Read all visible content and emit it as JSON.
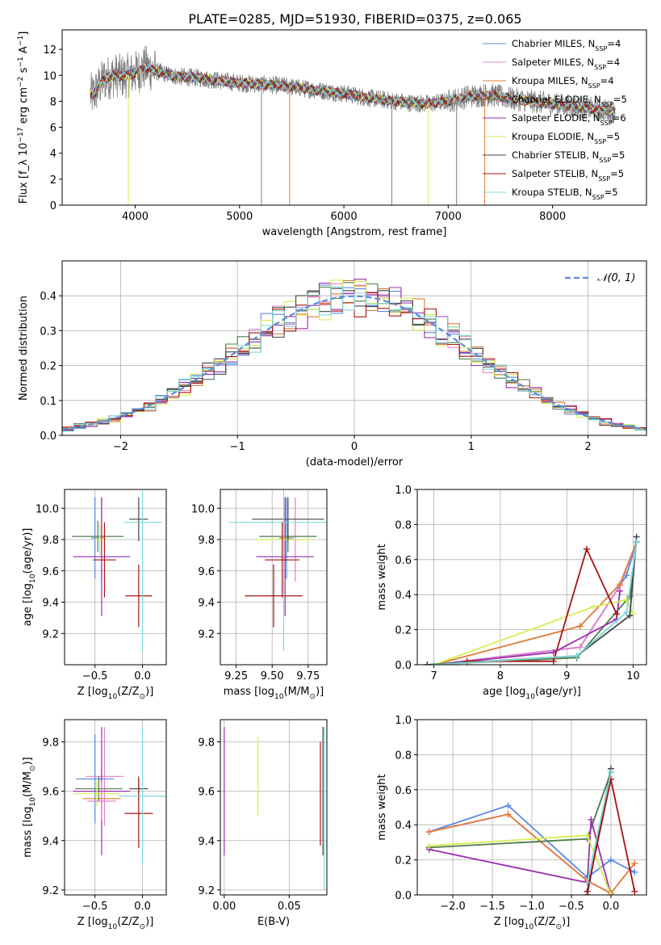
{
  "figure_title": "PLATE=0285, MJD=51930, FIBERID=0375, z=0.065",
  "colors": {
    "chabrier_miles": "#5b8ae0",
    "salpeter_miles": "#e47fc8",
    "kroupa_miles": "#e07b3a",
    "chabrier_elodie": "#4f7a4a",
    "salpeter_elodie": "#9a2fb0",
    "kroupa_elodie": "#d5ee50",
    "chabrier_stelib": "#444444",
    "salpeter_stelib": "#a81212",
    "kroupa_stelib": "#7cd8d8",
    "data": "#7f7f7f",
    "gaussian": "#5b8ae0"
  },
  "chart_data": [
    {
      "id": "spectrum",
      "type": "line",
      "title": "PLATE=0285, MJD=51930, FIBERID=0375, z=0.065",
      "xlabel": "wavelength [Angstrom, rest frame]",
      "ylabel": "Flux [f_λ 10^-17 erg cm^-2 s^-1 A^-1]",
      "xlim": [
        3300,
        8900
      ],
      "ylim": [
        0,
        13.5
      ],
      "xticks": [
        4000,
        5000,
        6000,
        7000,
        8000
      ],
      "yticks": [
        0,
        2,
        4,
        6,
        8,
        10,
        12
      ],
      "legend_position": "right",
      "legend": [
        "Chabrier MILES, N_SSP=4",
        "Salpeter MILES, N_SSP=4",
        "Kroupa MILES, N_SSP=4",
        "Chabrier ELODIE, N_SSP=5",
        "Salpeter ELODIE, N_SSP=6",
        "Kroupa ELODIE, N_SSP=5",
        "Chabrier STELIB, N_SSP=5",
        "Salpeter STELIB, N_SSP=5",
        "Kroupa STELIB, N_SSP=5"
      ],
      "continuum": [
        [
          3600,
          8.5
        ],
        [
          3700,
          9.7
        ],
        [
          3800,
          10.0
        ],
        [
          3900,
          9.9
        ],
        [
          4000,
          10.2
        ],
        [
          4100,
          10.6
        ],
        [
          4200,
          10.3
        ],
        [
          4400,
          9.9
        ],
        [
          4600,
          9.8
        ],
        [
          4800,
          9.6
        ],
        [
          5000,
          9.4
        ],
        [
          5200,
          9.3
        ],
        [
          5400,
          9.2
        ],
        [
          5600,
          9.0
        ],
        [
          5800,
          8.8
        ],
        [
          6000,
          8.6
        ],
        [
          6200,
          8.3
        ],
        [
          6400,
          8.1
        ],
        [
          6600,
          7.9
        ],
        [
          6800,
          7.8
        ],
        [
          7000,
          8.0
        ],
        [
          7200,
          8.4
        ],
        [
          7400,
          8.5
        ],
        [
          7600,
          8.2
        ],
        [
          7800,
          8.0
        ],
        [
          8000,
          7.8
        ],
        [
          8200,
          7.6
        ],
        [
          8400,
          7.4
        ],
        [
          8600,
          7.2
        ]
      ],
      "dips": [
        [
          3934,
          0
        ],
        [
          5210,
          0
        ],
        [
          5480,
          0
        ],
        [
          6460,
          0
        ],
        [
          6810,
          0
        ],
        [
          7080,
          0
        ],
        [
          7350,
          0
        ]
      ]
    },
    {
      "id": "residuals",
      "type": "line",
      "xlabel": "(data-model)/error",
      "ylabel": "Normed distribution",
      "xlim": [
        -2.5,
        2.5
      ],
      "ylim": [
        0,
        0.5
      ],
      "xticks": [
        -2,
        -1,
        0,
        1,
        2
      ],
      "yticks": [
        0.0,
        0.1,
        0.2,
        0.3,
        0.4
      ],
      "legend": [
        "𝒩(0, 1)"
      ],
      "legend_position": "upper right",
      "gaussian_mean": 0,
      "gaussian_sigma": 1
    },
    {
      "id": "age_vs_Z",
      "type": "scatter",
      "xlabel": "Z [log10(Z/Z☉)]",
      "ylabel": "age [log10(age/yr)]",
      "xlim": [
        -0.82,
        0.25
      ],
      "ylim": [
        9.0,
        10.12
      ],
      "xticks": [
        -0.5,
        0.0
      ],
      "yticks": [
        9.2,
        9.4,
        9.6,
        9.8,
        10.0
      ],
      "points": [
        {
          "series": "Chabrier MILES",
          "x": -0.5,
          "xerr": 0.04,
          "y": 9.81,
          "yerr": 0.26
        },
        {
          "series": "Salpeter MILES",
          "x": -0.43,
          "xerr": 0.02,
          "y": 9.8,
          "yerr": 0.27
        },
        {
          "series": "Kroupa MILES",
          "x": -0.43,
          "xerr": 0.02,
          "y": 9.81,
          "yerr": 0.26
        },
        {
          "series": "Chabrier ELODIE",
          "x": -0.47,
          "xerr": 0.27,
          "y": 9.82,
          "yerr": 0.1
        },
        {
          "series": "Salpeter ELODIE",
          "x": -0.43,
          "xerr": 0.3,
          "y": 9.69,
          "yerr": 0.38
        },
        {
          "series": "Kroupa ELODIE",
          "x": -0.45,
          "xerr": 0.05,
          "y": 9.8,
          "yerr": 0.1
        },
        {
          "series": "Chabrier STELIB",
          "x": -0.04,
          "xerr": 0.1,
          "y": 9.93,
          "yerr": 0.14
        },
        {
          "series": "Salpeter STELIB",
          "x": -0.04,
          "xerr": 0.14,
          "y": 9.44,
          "yerr": 0.2
        },
        {
          "series": "Kroupa STELIB",
          "x": 0.0,
          "xerr": 0.2,
          "y": 9.91,
          "yerr": 0.82
        },
        {
          "series": "Salpeter STELIB",
          "x": -0.4,
          "xerr": 0.12,
          "y": 9.67,
          "yerr": 0.24
        }
      ]
    },
    {
      "id": "age_vs_mass",
      "type": "scatter",
      "xlabel": "mass [log10(M/M☉)]",
      "ylabel": "",
      "xlim": [
        9.14,
        9.88
      ],
      "ylim": [
        9.0,
        10.12
      ],
      "xticks": [
        9.25,
        9.5,
        9.75
      ],
      "yticks": [
        9.2,
        9.4,
        9.6,
        9.8,
        10.0
      ],
      "points": [
        {
          "series": "Chabrier MILES",
          "x": 9.6,
          "xerr": 0.05,
          "y": 9.81,
          "yerr": 0.26
        },
        {
          "series": "Salpeter MILES",
          "x": 9.66,
          "xerr": 0.04,
          "y": 9.8,
          "yerr": 0.27
        },
        {
          "series": "Kroupa MILES",
          "x": 9.59,
          "xerr": 0.04,
          "y": 9.81,
          "yerr": 0.26
        },
        {
          "series": "Chabrier ELODIE",
          "x": 9.61,
          "xerr": 0.2,
          "y": 9.82,
          "yerr": 0.1
        },
        {
          "series": "Salpeter ELODIE",
          "x": 9.59,
          "xerr": 0.2,
          "y": 9.69,
          "yerr": 0.38
        },
        {
          "series": "Kroupa ELODIE",
          "x": 9.58,
          "xerr": 0.2,
          "y": 9.8,
          "yerr": 0.1
        },
        {
          "series": "Chabrier STELIB",
          "x": 9.61,
          "xerr": 0.25,
          "y": 9.93,
          "yerr": 0.14
        },
        {
          "series": "Salpeter STELIB",
          "x": 9.51,
          "xerr": 0.2,
          "y": 9.44,
          "yerr": 0.2
        },
        {
          "series": "Kroupa STELIB",
          "x": 9.58,
          "xerr": 0.38,
          "y": 9.91,
          "yerr": 0.82
        },
        {
          "series": "Salpeter STELIB",
          "x": 9.57,
          "xerr": 0.12,
          "y": 9.67,
          "yerr": 0.24
        }
      ]
    },
    {
      "id": "mass_weight_vs_age",
      "type": "line",
      "xlabel": "age [log10(age/yr)]",
      "ylabel": "mass weight",
      "xlim": [
        6.75,
        10.2
      ],
      "ylim": [
        0.0,
        1.0
      ],
      "xticks": [
        7,
        8,
        9,
        10
      ],
      "yticks": [
        0.0,
        0.2,
        0.4,
        0.6,
        0.8,
        1.0
      ],
      "series": [
        {
          "name": "Chabrier MILES",
          "x": [
            7.0,
            9.2,
            9.9,
            10.05
          ],
          "y": [
            0.0,
            0.1,
            0.51,
            0.7
          ]
        },
        {
          "name": "Salpeter MILES",
          "x": [
            7.0,
            9.2,
            9.8,
            10.05
          ],
          "y": [
            0.0,
            0.1,
            0.45,
            0.7
          ]
        },
        {
          "name": "Kroupa MILES",
          "x": [
            7.0,
            9.2,
            9.8,
            10.05
          ],
          "y": [
            0.0,
            0.22,
            0.46,
            0.7
          ]
        },
        {
          "name": "Chabrier ELODIE",
          "x": [
            6.9,
            9.15,
            9.95,
            10.05
          ],
          "y": [
            0.0,
            0.04,
            0.39,
            0.7
          ]
        },
        {
          "name": "Salpeter ELODIE",
          "x": [
            7.0,
            8.8,
            9.75,
            9.8
          ],
          "y": [
            0.0,
            0.07,
            0.26,
            0.42
          ]
        },
        {
          "name": "Kroupa ELODIE",
          "x": [
            7.0,
            9.4,
            9.9,
            10.0
          ],
          "y": [
            0.0,
            0.33,
            0.37,
            0.29
          ]
        },
        {
          "name": "Chabrier STELIB",
          "x": [
            6.9,
            9.15,
            9.95,
            10.05
          ],
          "y": [
            0.0,
            0.05,
            0.28,
            0.73
          ]
        },
        {
          "name": "Salpeter STELIB",
          "x": [
            7.5,
            8.8,
            9.3,
            9.75
          ],
          "y": [
            0.02,
            0.02,
            0.66,
            0.29
          ]
        },
        {
          "name": "Kroupa STELIB",
          "x": [
            7.0,
            9.15,
            9.9,
            10.05
          ],
          "y": [
            0.0,
            0.05,
            0.3,
            0.7
          ]
        }
      ]
    },
    {
      "id": "mass_vs_Z",
      "type": "scatter",
      "xlabel": "Z [log10(Z/Z☉)]",
      "ylabel": "mass [log10(M/M☉)]",
      "xlim": [
        -0.82,
        0.25
      ],
      "ylim": [
        9.18,
        9.89
      ],
      "xticks": [
        -0.5,
        0.0
      ],
      "yticks": [
        9.2,
        9.4,
        9.6,
        9.8
      ],
      "points": [
        {
          "series": "Chabrier MILES",
          "x": -0.5,
          "xerr": 0.2,
          "y": 9.65,
          "yerr": 0.18
        },
        {
          "series": "Salpeter MILES",
          "x": -0.4,
          "xerr": 0.2,
          "y": 9.66,
          "yerr": 0.2
        },
        {
          "series": "Kroupa MILES",
          "x": -0.43,
          "xerr": 0.2,
          "y": 9.57,
          "yerr": 0.12
        },
        {
          "series": "Chabrier ELODIE",
          "x": -0.46,
          "xerr": 0.25,
          "y": 9.61,
          "yerr": 0.05
        },
        {
          "series": "Salpeter ELODIE",
          "x": -0.43,
          "xerr": 0.3,
          "y": 9.6,
          "yerr": 0.26
        },
        {
          "series": "Kroupa ELODIE",
          "x": -0.48,
          "xerr": 0.25,
          "y": 9.59,
          "yerr": 0.05
        },
        {
          "series": "Chabrier STELIB",
          "x": -0.04,
          "xerr": 0.1,
          "y": 9.61,
          "yerr": 0.05
        },
        {
          "series": "Salpeter STELIB",
          "x": -0.04,
          "xerr": 0.15,
          "y": 9.51,
          "yerr": 0.14
        },
        {
          "series": "Kroupa STELIB",
          "x": 0.0,
          "xerr": 0.25,
          "y": 9.58,
          "yerr": 0.28
        },
        {
          "series": "Salpeter MILES",
          "x": -0.43,
          "xerr": 0.15,
          "y": 9.56,
          "yerr": 0.08
        }
      ]
    },
    {
      "id": "mass_vs_EBV",
      "type": "scatter",
      "xlabel": "E(B-V)",
      "ylabel": "",
      "xlim": [
        -0.003,
        0.079
      ],
      "ylim": [
        9.18,
        9.89
      ],
      "xticks": [
        0.0,
        0.05
      ],
      "yticks": [
        9.2,
        9.4,
        9.6,
        9.8
      ],
      "points": [
        {
          "series": "Salpeter ELODIE",
          "x": 0.0,
          "y": 9.6,
          "yerr": 0.26
        },
        {
          "series": "Kroupa ELODIE",
          "x": 0.026,
          "y": 9.66,
          "yerr": 0.16
        },
        {
          "series": "Salpeter STELIB",
          "x": 0.074,
          "y": 9.59,
          "yerr": 0.21
        },
        {
          "series": "Kroupa STELIB",
          "x": 0.077,
          "y": 9.53,
          "yerr": 0.33
        },
        {
          "series": "Chabrier STELIB",
          "x": 0.076,
          "y": 9.6,
          "yerr": 0.26
        }
      ]
    },
    {
      "id": "mass_weight_vs_Z",
      "type": "line",
      "xlabel": "Z [log10(Z/Z☉)]",
      "ylabel": "mass weight",
      "xlim": [
        -2.45,
        0.45
      ],
      "ylim": [
        0.0,
        1.0
      ],
      "xticks": [
        -2.0,
        -1.5,
        -1.0,
        -0.5,
        0.0
      ],
      "yticks": [
        0.0,
        0.2,
        0.4,
        0.6,
        0.8,
        1.0
      ],
      "series": [
        {
          "name": "Chabrier MILES",
          "x": [
            -2.3,
            -1.3,
            -0.3,
            0.0,
            0.3
          ],
          "y": [
            0.36,
            0.51,
            0.1,
            0.2,
            0.13
          ]
        },
        {
          "name": "Salpeter MILES",
          "x": [
            -2.3,
            -1.3,
            -0.3,
            0.0
          ],
          "y": [
            0.36,
            0.46,
            0.08,
            0.01
          ]
        },
        {
          "name": "Kroupa MILES",
          "x": [
            -2.3,
            -1.3,
            -0.3,
            0.0,
            0.3
          ],
          "y": [
            0.36,
            0.46,
            0.08,
            0.01,
            0.18
          ]
        },
        {
          "name": "Chabrier ELODIE",
          "x": [
            -2.3,
            -0.3,
            0.0
          ],
          "y": [
            0.27,
            0.32,
            0.7
          ]
        },
        {
          "name": "Salpeter ELODIE",
          "x": [
            -2.3,
            -0.3,
            -0.25,
            0.0
          ],
          "y": [
            0.26,
            0.07,
            0.43,
            0.0
          ]
        },
        {
          "name": "Kroupa ELODIE",
          "x": [
            -2.3,
            -0.3,
            0.0
          ],
          "y": [
            0.28,
            0.34,
            0.0
          ]
        },
        {
          "name": "Chabrier STELIB",
          "x": [
            -0.3,
            0.0
          ],
          "y": [
            0.0,
            0.72
          ]
        },
        {
          "name": "Salpeter STELIB",
          "x": [
            -0.3,
            0.0,
            0.3
          ],
          "y": [
            0.02,
            0.66,
            0.02
          ]
        },
        {
          "name": "Kroupa STELIB",
          "x": [
            -0.3,
            0.0
          ],
          "y": [
            0.07,
            0.7
          ]
        }
      ]
    }
  ]
}
